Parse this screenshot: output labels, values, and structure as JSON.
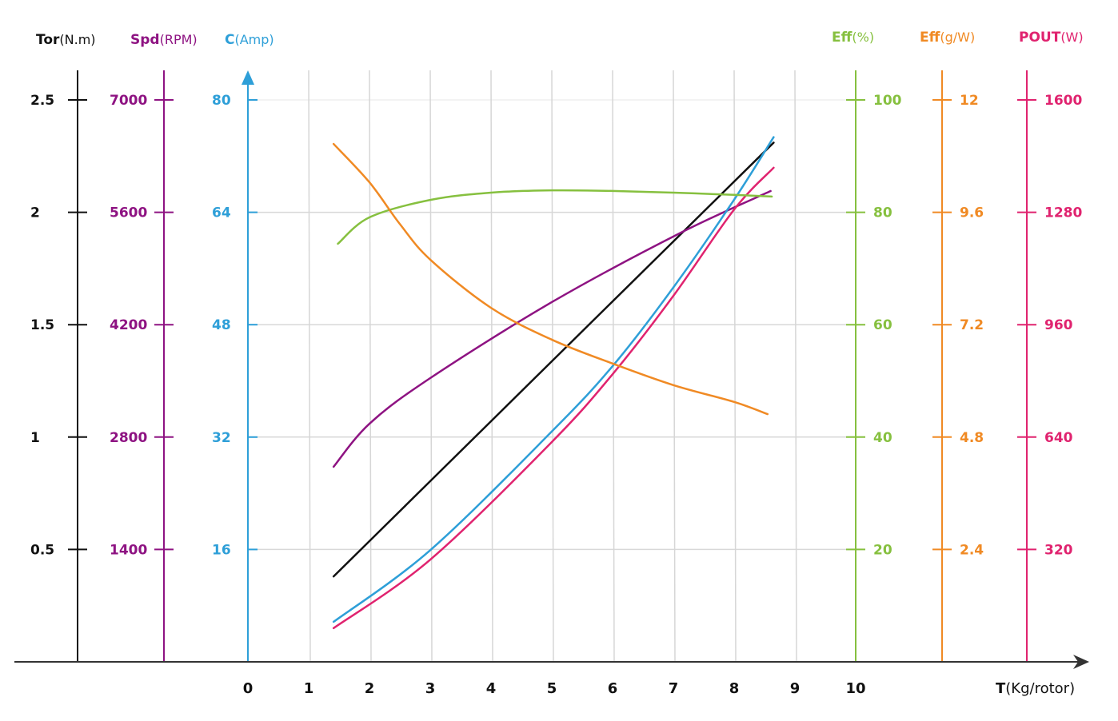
{
  "chart_data": {
    "type": "line",
    "title": "",
    "xlabel": {
      "name": "T",
      "unit": "(Kg/rotor)"
    },
    "xlim": [
      0,
      10
    ],
    "x_ticks": [
      "0",
      "1",
      "2",
      "3",
      "4",
      "5",
      "6",
      "7",
      "8",
      "9",
      "10"
    ],
    "grid": true,
    "axes": [
      {
        "id": "tor",
        "name": "Tor",
        "unit": "(N.m)",
        "color": "#111111",
        "side": "left",
        "range": [
          0,
          2.5
        ],
        "ticks": [
          "0.5",
          "1",
          "1.5",
          "2",
          "2.5"
        ]
      },
      {
        "id": "spd",
        "name": "Spd",
        "unit": "(RPM)",
        "color": "#8e1382",
        "side": "left",
        "range": [
          0,
          7000
        ],
        "ticks": [
          "1400",
          "2800",
          "4200",
          "5600",
          "7000"
        ]
      },
      {
        "id": "amp",
        "name": "C",
        "unit": "(Amp)",
        "color": "#2e9fd8",
        "side": "left",
        "range": [
          0,
          80
        ],
        "ticks": [
          "16",
          "32",
          "48",
          "64",
          "80"
        ]
      },
      {
        "id": "effp",
        "name": "Eff",
        "unit": "(%)",
        "color": "#86c03f",
        "side": "right",
        "range": [
          0,
          100
        ],
        "ticks": [
          "20",
          "40",
          "60",
          "80",
          "100"
        ]
      },
      {
        "id": "effg",
        "name": "Eff",
        "unit": "(g/W)",
        "color": "#f08a24",
        "side": "right",
        "range": [
          0,
          12
        ],
        "ticks": [
          "2.4",
          "4.8",
          "7.2",
          "9.6",
          "12"
        ]
      },
      {
        "id": "pout",
        "name": "POUT",
        "unit": "(W)",
        "color": "#e0236f",
        "side": "right",
        "range": [
          0,
          1600
        ],
        "ticks": [
          "320",
          "640",
          "960",
          "1280",
          "1600"
        ]
      }
    ],
    "series": [
      {
        "name": "Tor (N.m)",
        "axis": "tor",
        "color": "#111111",
        "x": [
          1.41,
          8.65
        ],
        "y": [
          0.38,
          2.31
        ]
      },
      {
        "name": "Spd (RPM)",
        "axis": "spd",
        "color": "#8e1382",
        "x": [
          1.41,
          2,
          3,
          5,
          7.1,
          8.6
        ],
        "y": [
          2430,
          2967,
          3535,
          4481,
          5337,
          5865
        ]
      },
      {
        "name": "C (Amp)",
        "axis": "amp",
        "color": "#2e9fd8",
        "x": [
          1.41,
          3,
          5,
          6,
          7,
          8,
          8.65
        ],
        "y": [
          5.7,
          15.9,
          32.8,
          42.1,
          53.3,
          65.8,
          74.7
        ]
      },
      {
        "name": "POUT (W)",
        "axis": "pout",
        "color": "#e0236f",
        "x": [
          1.41,
          3,
          5,
          6,
          7,
          8,
          8.65
        ],
        "y": [
          96,
          291,
          626,
          819,
          1042,
          1288,
          1407
        ]
      },
      {
        "name": "Eff (%)",
        "axis": "effp",
        "color": "#86c03f",
        "x": [
          1.48,
          2,
          3,
          4,
          5,
          6,
          7,
          8,
          8.62
        ],
        "y": [
          74.4,
          79.1,
          82.2,
          83.5,
          83.9,
          83.8,
          83.5,
          83.1,
          82.8
        ]
      },
      {
        "name": "Eff (g/W)",
        "axis": "effg",
        "color": "#f08a24",
        "x": [
          1.41,
          2,
          2.5,
          3,
          4,
          5,
          6,
          7,
          8,
          8.55
        ],
        "y": [
          11.06,
          10.24,
          9.35,
          8.59,
          7.56,
          6.88,
          6.37,
          5.91,
          5.55,
          5.29
        ]
      }
    ]
  }
}
